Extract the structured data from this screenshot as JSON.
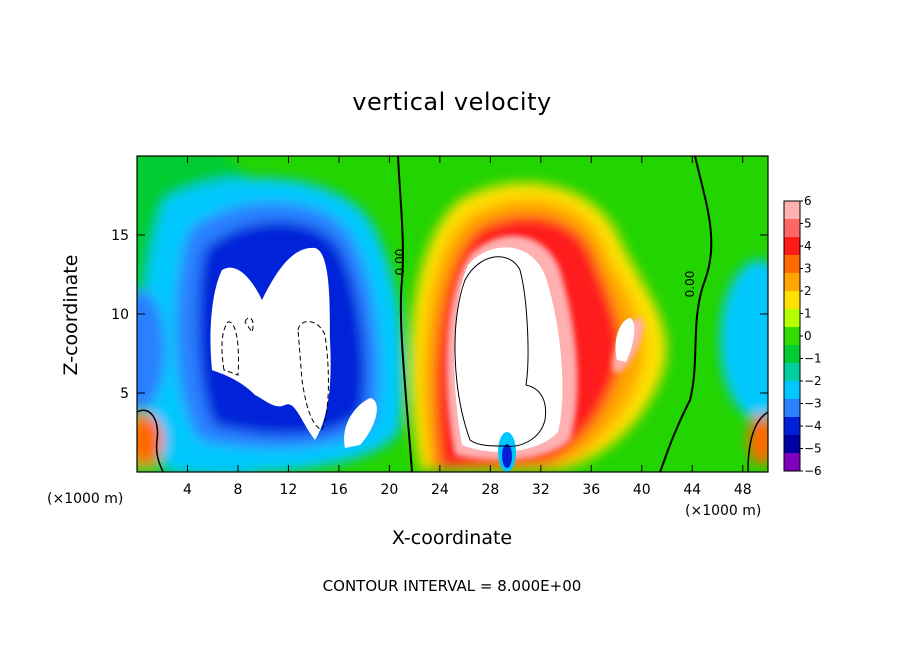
{
  "chart_data": {
    "type": "heatmap",
    "title": "vertical velocity",
    "xlabel": "X-coordinate",
    "ylabel": "Z-coordinate",
    "x_unit": "(×1000 m)",
    "footer": "CONTOUR INTERVAL = 8.000E+00",
    "xlim": [
      0,
      50
    ],
    "ylim": [
      0,
      20
    ],
    "x_ticks": [
      4,
      8,
      12,
      16,
      20,
      24,
      28,
      32,
      36,
      40,
      44,
      48
    ],
    "y_ticks": [
      5,
      10,
      15
    ],
    "contour_labels": [
      "0.00",
      "0.00"
    ],
    "colorbar": {
      "ticks": [
        6,
        5,
        4,
        3,
        2,
        1,
        0,
        -1,
        -2,
        -3,
        -4,
        -5,
        -6
      ],
      "colors": [
        "#ffb0b0",
        "#ff6666",
        "#ff1a1a",
        "#ff6a00",
        "#ffa500",
        "#ffe000",
        "#b4ff00",
        "#33dd00",
        "#00cc33",
        "#00d0a0",
        "#00c8ff",
        "#2a80ff",
        "#0020d8",
        "#0000a0",
        "#8000c0"
      ]
    },
    "features": [
      {
        "name": "updraft core",
        "x": 29,
        "z": 9,
        "value": ">6"
      },
      {
        "name": "downdraft core",
        "x": 10,
        "z": 10,
        "value": "<-6"
      }
    ]
  }
}
